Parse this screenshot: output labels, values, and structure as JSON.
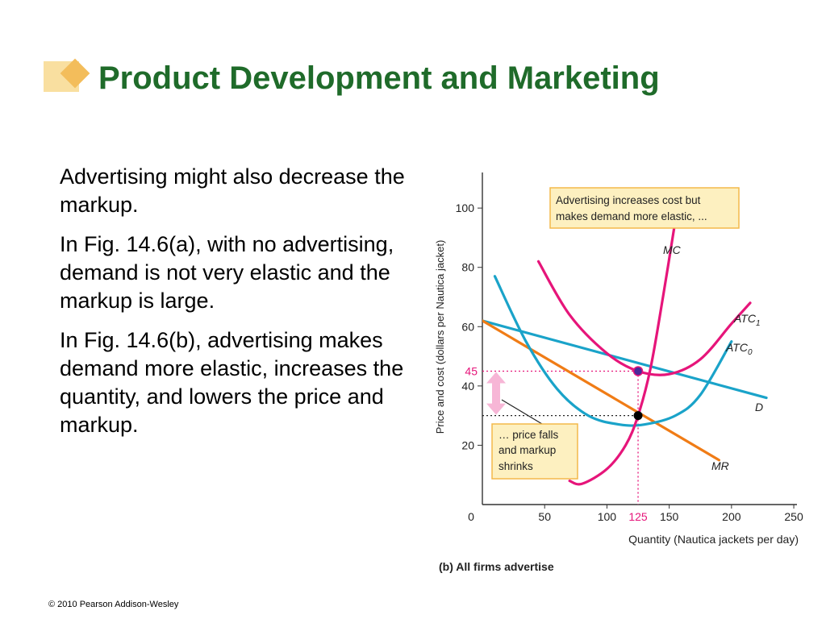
{
  "slide": {
    "title": "Product Development and Marketing",
    "paragraphs": [
      "Advertising might also decrease the markup.",
      "In Fig. 14.6(a), with no advertising, demand is not very elastic and the markup is large.",
      "In Fig. 14.6(b), advertising makes demand more elastic, increases the quantity, and lowers the price and  markup."
    ],
    "footer": "© 2010 Pearson Addison-Wesley"
  },
  "colors": {
    "title": "#1f6b2a",
    "mc": "#e6157a",
    "atc1": "#e6157a",
    "atc0": "#1aa3c9",
    "demand": "#1aa3c9",
    "mr": "#f07c16",
    "markup_arrow": "#f7b6d6",
    "callout_bg": "#fdf0c0",
    "callout_border": "#f3b94a"
  },
  "chart_data": {
    "type": "line",
    "caption": "(b) All firms advertise",
    "xlabel": "Quantity (Nautica jackets per day)",
    "ylabel": "Price and cost (dollars per Nautica jacket)",
    "xlim": [
      0,
      260
    ],
    "ylim": [
      0,
      112
    ],
    "x_ticks": [
      "0",
      "50",
      "100",
      "150",
      "200",
      "250"
    ],
    "x_tick_values": [
      0,
      50,
      100,
      150,
      200,
      250
    ],
    "y_ticks": [
      "20",
      "40",
      "60",
      "80",
      "100"
    ],
    "y_tick_values": [
      20,
      40,
      60,
      80,
      100
    ],
    "series": [
      {
        "name": "D",
        "label_main": "D",
        "label_sub": "",
        "color_key": "demand",
        "points": [
          [
            0,
            62
          ],
          [
            228,
            36
          ]
        ]
      },
      {
        "name": "MR",
        "label_main": "MR",
        "label_sub": "",
        "color_key": "mr",
        "points": [
          [
            0,
            62
          ],
          [
            190,
            15
          ]
        ]
      },
      {
        "name": "MC",
        "label_main": "MC",
        "label_sub": "",
        "color_key": "mc",
        "points": [
          [
            70,
            8
          ],
          [
            80,
            7
          ],
          [
            100,
            12
          ],
          [
            115,
            20
          ],
          [
            125,
            30
          ],
          [
            135,
            46
          ],
          [
            145,
            70
          ],
          [
            155,
            96
          ]
        ]
      },
      {
        "name": "ATC1",
        "label_main": "ATC",
        "label_sub": "1",
        "color_key": "atc1",
        "points": [
          [
            45,
            82
          ],
          [
            70,
            64
          ],
          [
            100,
            51
          ],
          [
            125,
            45
          ],
          [
            150,
            44
          ],
          [
            175,
            49
          ],
          [
            200,
            61
          ],
          [
            215,
            68
          ]
        ]
      },
      {
        "name": "ATC0",
        "label_main": "ATC",
        "label_sub": "0",
        "color_key": "atc0",
        "points": [
          [
            10,
            77
          ],
          [
            35,
            55
          ],
          [
            60,
            39
          ],
          [
            85,
            30
          ],
          [
            110,
            27
          ],
          [
            130,
            27
          ],
          [
            155,
            30
          ],
          [
            175,
            37
          ],
          [
            200,
            55
          ]
        ]
      }
    ],
    "equilibrium": {
      "quantity": 125,
      "price": 45,
      "quantity_label": "125",
      "price_label": "45",
      "cost": 30
    },
    "annotations": {
      "top_callout": [
        "Advertising increases cost but",
        "makes demand more elastic, ..."
      ],
      "bottom_callout": [
        "… price falls",
        "and markup",
        "shrinks"
      ]
    }
  }
}
